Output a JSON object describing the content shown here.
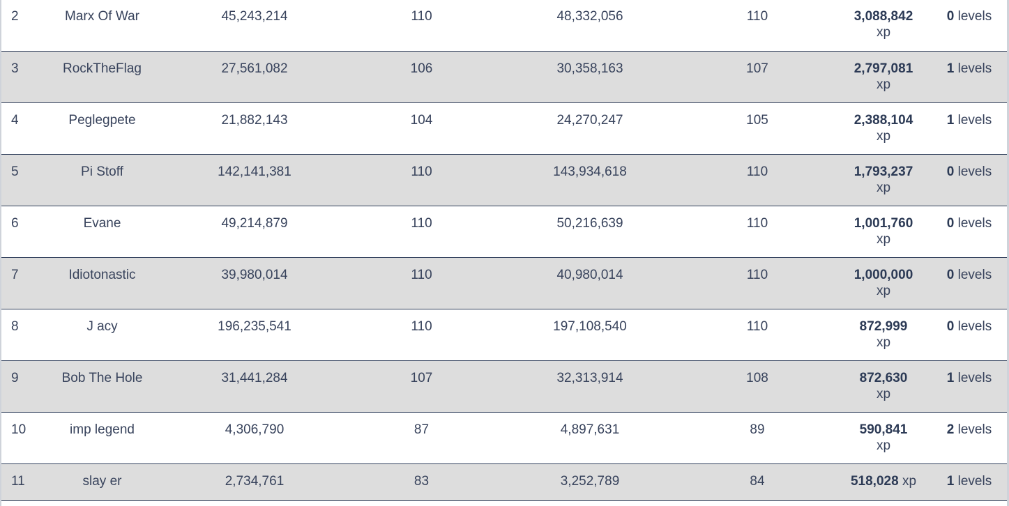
{
  "rows": [
    {
      "rank": "2",
      "name": "Marx Of War",
      "start_xp": "45,243,214",
      "start_level": "110",
      "end_xp": "48,332,056",
      "end_level": "110",
      "gain_xp": "3,088,842",
      "gain_unit": "xp",
      "levels_gained": "0",
      "levels_unit": "levels"
    },
    {
      "rank": "3",
      "name": "RockTheFlag",
      "start_xp": "27,561,082",
      "start_level": "106",
      "end_xp": "30,358,163",
      "end_level": "107",
      "gain_xp": "2,797,081",
      "gain_unit": "xp",
      "levels_gained": "1",
      "levels_unit": "levels"
    },
    {
      "rank": "4",
      "name": "Peglegpete",
      "start_xp": "21,882,143",
      "start_level": "104",
      "end_xp": "24,270,247",
      "end_level": "105",
      "gain_xp": "2,388,104",
      "gain_unit": "xp",
      "levels_gained": "1",
      "levels_unit": "levels"
    },
    {
      "rank": "5",
      "name": "Pi Stoff",
      "start_xp": "142,141,381",
      "start_level": "110",
      "end_xp": "143,934,618",
      "end_level": "110",
      "gain_xp": "1,793,237",
      "gain_unit": "xp",
      "levels_gained": "0",
      "levels_unit": "levels"
    },
    {
      "rank": "6",
      "name": "Evane",
      "start_xp": "49,214,879",
      "start_level": "110",
      "end_xp": "50,216,639",
      "end_level": "110",
      "gain_xp": "1,001,760",
      "gain_unit": "xp",
      "levels_gained": "0",
      "levels_unit": "levels"
    },
    {
      "rank": "7",
      "name": "Idiotonastic",
      "start_xp": "39,980,014",
      "start_level": "110",
      "end_xp": "40,980,014",
      "end_level": "110",
      "gain_xp": "1,000,000",
      "gain_unit": "xp",
      "levels_gained": "0",
      "levels_unit": "levels"
    },
    {
      "rank": "8",
      "name": "J acy",
      "start_xp": "196,235,541",
      "start_level": "110",
      "end_xp": "197,108,540",
      "end_level": "110",
      "gain_xp": "872,999",
      "gain_unit": "xp",
      "levels_gained": "0",
      "levels_unit": "levels"
    },
    {
      "rank": "9",
      "name": "Bob The Hole",
      "start_xp": "31,441,284",
      "start_level": "107",
      "end_xp": "32,313,914",
      "end_level": "108",
      "gain_xp": "872,630",
      "gain_unit": "xp",
      "levels_gained": "1",
      "levels_unit": "levels"
    },
    {
      "rank": "10",
      "name": "imp legend",
      "start_xp": "4,306,790",
      "start_level": "87",
      "end_xp": "4,897,631",
      "end_level": "89",
      "gain_xp": "590,841",
      "gain_unit": "xp",
      "levels_gained": "2",
      "levels_unit": "levels"
    },
    {
      "rank": "11",
      "name": "slay er",
      "start_xp": "2,734,761",
      "start_level": "83",
      "end_xp": "3,252,789",
      "end_level": "84",
      "gain_xp": "518,028",
      "gain_unit": "xp",
      "levels_gained": "1",
      "levels_unit": "levels"
    }
  ]
}
